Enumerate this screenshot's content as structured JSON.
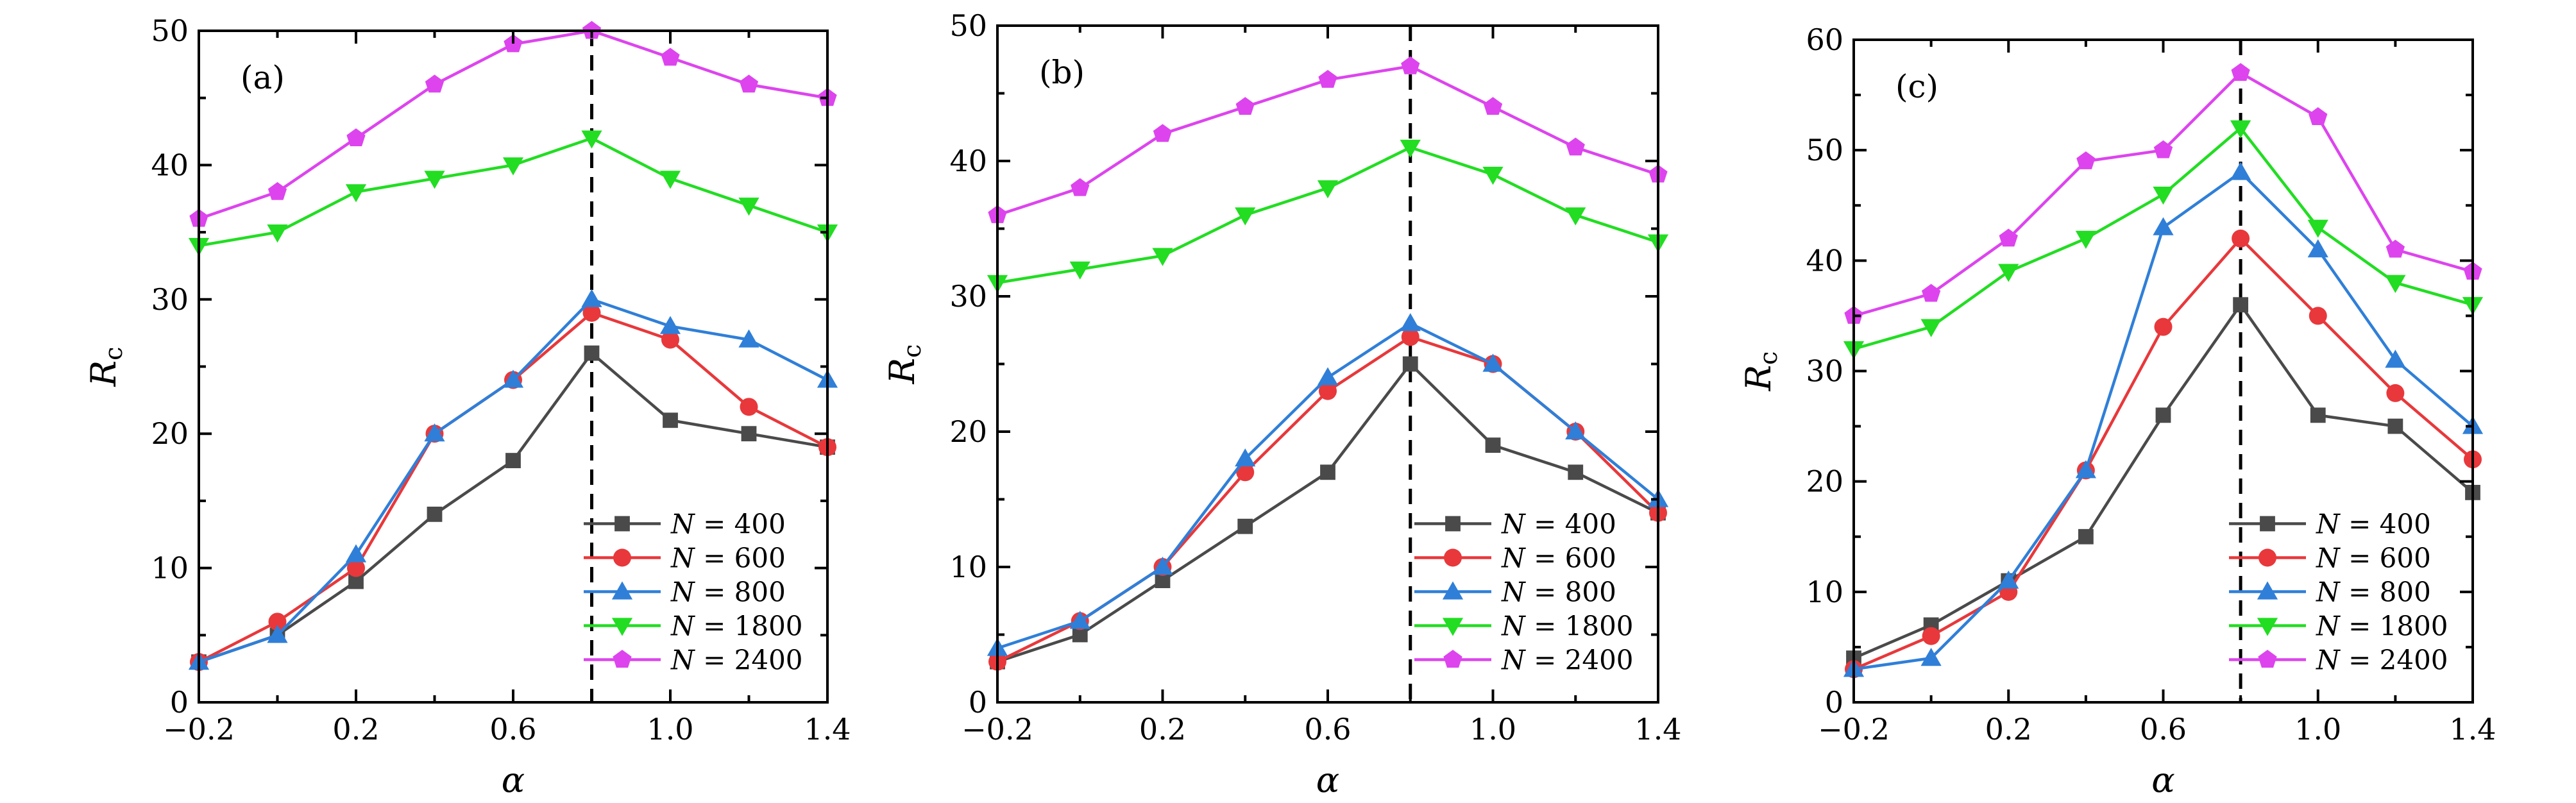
{
  "chart_data": [
    {
      "type": "line",
      "panel_label": "(a)",
      "xlabel": "α",
      "ylabel_main": "R",
      "ylabel_sub": "c",
      "xlim": [
        -0.2,
        1.4
      ],
      "ylim": [
        0,
        50
      ],
      "xticks": [
        -0.2,
        0.2,
        0.6,
        1.0,
        1.4
      ],
      "xticklabels": [
        "−0.2",
        "0.2",
        "0.6",
        "1.0",
        "1.4"
      ],
      "yticks": [
        0,
        10,
        20,
        30,
        40,
        50
      ],
      "yticklabels": [
        "0",
        "10",
        "20",
        "30",
        "40",
        "50"
      ],
      "vline_x": 0.8,
      "grid": false,
      "legend_position": "lower-right",
      "x": [
        -0.2,
        0.0,
        0.2,
        0.4,
        0.6,
        0.8,
        1.0,
        1.2,
        1.4
      ],
      "series": [
        {
          "label": "N = 400",
          "label_var": "N",
          "label_rest": " = 400",
          "marker": "square",
          "color": "#4a4a4a",
          "values": [
            3,
            5,
            9,
            14,
            18,
            26,
            21,
            20,
            19
          ]
        },
        {
          "label": "N = 600",
          "label_var": "N",
          "label_rest": " = 600",
          "marker": "circle",
          "color": "#e8383b",
          "values": [
            3,
            6,
            10,
            20,
            24,
            29,
            27,
            22,
            19
          ]
        },
        {
          "label": "N = 800",
          "label_var": "N",
          "label_rest": " = 800",
          "marker": "triangle-up",
          "color": "#2f7fd8",
          "values": [
            3,
            5,
            11,
            20,
            24,
            30,
            28,
            27,
            24
          ]
        },
        {
          "label": "N = 1800",
          "label_var": "N",
          "label_rest": " = 1800",
          "marker": "triangle-down",
          "color": "#22dd22",
          "values": [
            34,
            35,
            38,
            39,
            40,
            42,
            39,
            37,
            35
          ]
        },
        {
          "label": "N = 2400",
          "label_var": "N",
          "label_rest": " = 2400",
          "marker": "pentagon",
          "color": "#dd44ee",
          "values": [
            36,
            38,
            42,
            46,
            49,
            50,
            48,
            46,
            45
          ]
        }
      ]
    },
    {
      "type": "line",
      "panel_label": "(b)",
      "xlabel": "α",
      "ylabel_main": "R",
      "ylabel_sub": "c",
      "xlim": [
        -0.2,
        1.4
      ],
      "ylim": [
        0,
        50
      ],
      "xticks": [
        -0.2,
        0.2,
        0.6,
        1.0,
        1.4
      ],
      "xticklabels": [
        "−0.2",
        "0.2",
        "0.6",
        "1.0",
        "1.4"
      ],
      "yticks": [
        0,
        10,
        20,
        30,
        40,
        50
      ],
      "yticklabels": [
        "0",
        "10",
        "20",
        "30",
        "40",
        "50"
      ],
      "vline_x": 0.8,
      "grid": false,
      "legend_position": "lower-right",
      "x": [
        -0.2,
        0.0,
        0.2,
        0.4,
        0.6,
        0.8,
        1.0,
        1.2,
        1.4
      ],
      "series": [
        {
          "label": "N = 400",
          "label_var": "N",
          "label_rest": " = 400",
          "marker": "square",
          "color": "#4a4a4a",
          "values": [
            3,
            5,
            9,
            13,
            17,
            25,
            19,
            17,
            14
          ]
        },
        {
          "label": "N = 600",
          "label_var": "N",
          "label_rest": " = 600",
          "marker": "circle",
          "color": "#e8383b",
          "values": [
            3,
            6,
            10,
            17,
            23,
            27,
            25,
            20,
            14
          ]
        },
        {
          "label": "N = 800",
          "label_var": "N",
          "label_rest": " = 800",
          "marker": "triangle-up",
          "color": "#2f7fd8",
          "values": [
            4,
            6,
            10,
            18,
            24,
            28,
            25,
            20,
            15
          ]
        },
        {
          "label": "N = 1800",
          "label_var": "N",
          "label_rest": " = 1800",
          "marker": "triangle-down",
          "color": "#22dd22",
          "values": [
            31,
            32,
            33,
            36,
            38,
            41,
            39,
            36,
            34
          ]
        },
        {
          "label": "N = 2400",
          "label_var": "N",
          "label_rest": " = 2400",
          "marker": "pentagon",
          "color": "#dd44ee",
          "values": [
            36,
            38,
            42,
            44,
            46,
            47,
            44,
            41,
            39
          ]
        }
      ]
    },
    {
      "type": "line",
      "panel_label": "(c)",
      "xlabel": "α",
      "ylabel_main": "R",
      "ylabel_sub": "c",
      "xlim": [
        -0.2,
        1.4
      ],
      "ylim": [
        0,
        60
      ],
      "xticks": [
        -0.2,
        0.2,
        0.6,
        1.0,
        1.4
      ],
      "xticklabels": [
        "−0.2",
        "0.2",
        "0.6",
        "1.0",
        "1.4"
      ],
      "yticks": [
        0,
        10,
        20,
        30,
        40,
        50,
        60
      ],
      "yticklabels": [
        "0",
        "10",
        "20",
        "30",
        "40",
        "50",
        "60"
      ],
      "vline_x": 0.8,
      "grid": false,
      "legend_position": "lower-right",
      "x": [
        -0.2,
        0.0,
        0.2,
        0.4,
        0.6,
        0.8,
        1.0,
        1.2,
        1.4
      ],
      "series": [
        {
          "label": "N = 400",
          "label_var": "N",
          "label_rest": " = 400",
          "marker": "square",
          "color": "#4a4a4a",
          "values": [
            4,
            7,
            11,
            15,
            26,
            36,
            26,
            25,
            19
          ]
        },
        {
          "label": "N = 600",
          "label_var": "N",
          "label_rest": " = 600",
          "marker": "circle",
          "color": "#e8383b",
          "values": [
            3,
            6,
            10,
            21,
            34,
            42,
            35,
            28,
            22
          ]
        },
        {
          "label": "N = 800",
          "label_var": "N",
          "label_rest": " = 800",
          "marker": "triangle-up",
          "color": "#2f7fd8",
          "values": [
            3,
            4,
            11,
            21,
            43,
            48,
            41,
            31,
            25
          ]
        },
        {
          "label": "N = 1800",
          "label_var": "N",
          "label_rest": " = 1800",
          "marker": "triangle-down",
          "color": "#22dd22",
          "values": [
            32,
            34,
            39,
            42,
            46,
            52,
            43,
            38,
            36
          ]
        },
        {
          "label": "N = 2400",
          "label_var": "N",
          "label_rest": " = 2400",
          "marker": "pentagon",
          "color": "#dd44ee",
          "values": [
            35,
            37,
            42,
            49,
            50,
            57,
            53,
            41,
            39
          ]
        }
      ]
    }
  ]
}
